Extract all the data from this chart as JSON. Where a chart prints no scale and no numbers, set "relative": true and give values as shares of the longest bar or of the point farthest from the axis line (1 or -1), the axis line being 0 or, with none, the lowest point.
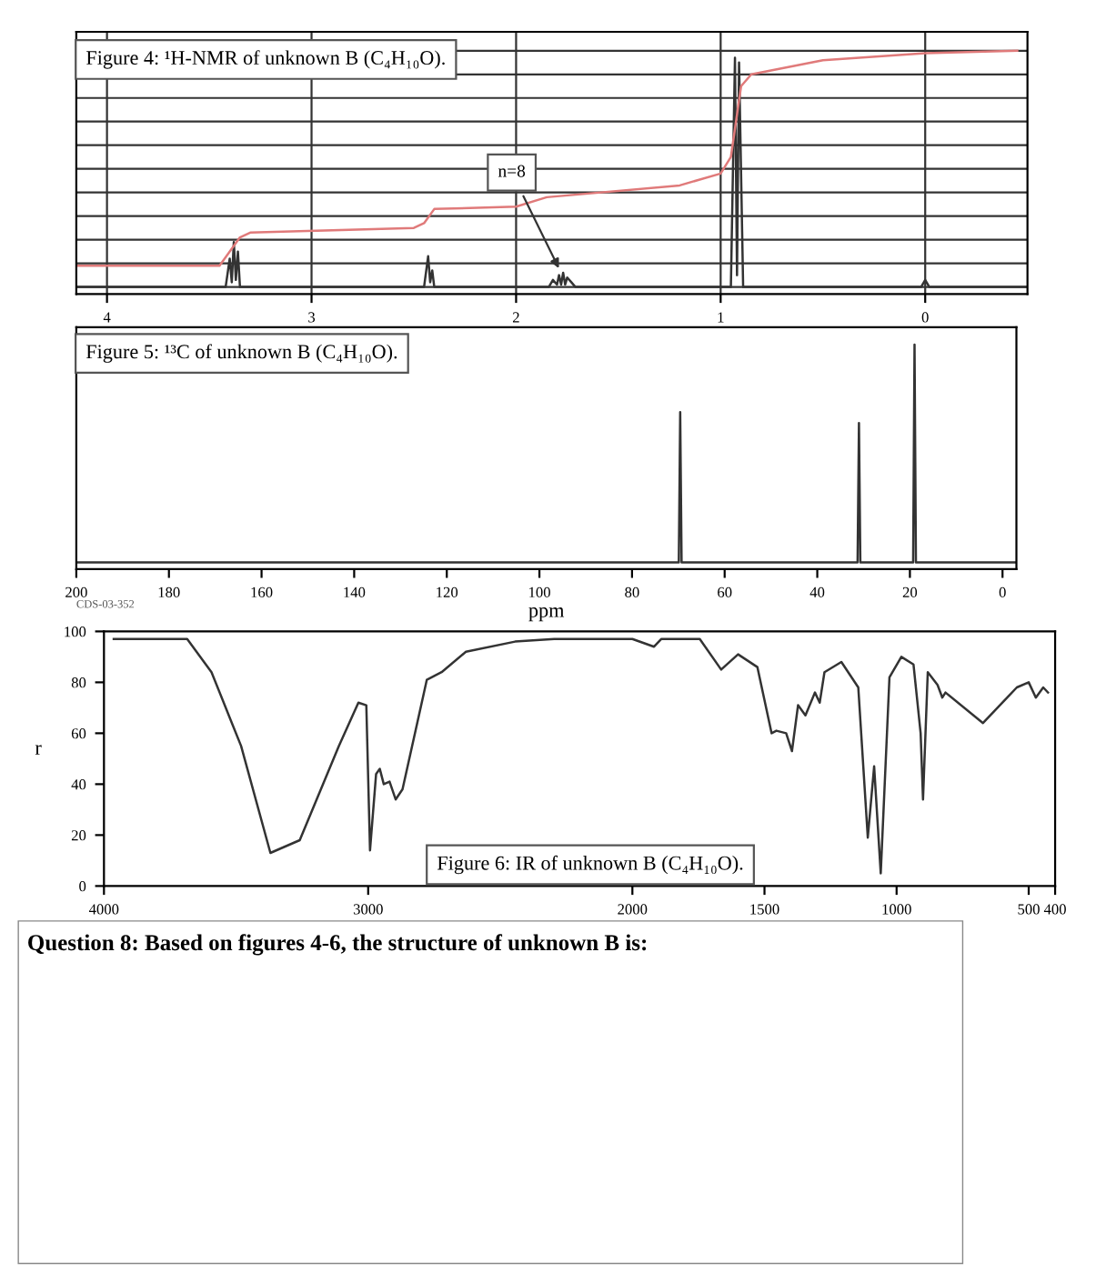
{
  "chart_data": [
    {
      "type": "line",
      "title": "Figure 4: ¹H-NMR of unknown B (C₄H₁₀O).",
      "relative": true,
      "grid": true,
      "xlim": [
        4.15,
        -0.5
      ],
      "xticks": [
        4,
        3,
        2,
        1,
        0
      ],
      "annotations": [
        {
          "text": "n=8",
          "x": 1.78,
          "y": 0.06
        }
      ],
      "series": [
        {
          "color": "#333333",
          "x": [
            4.15,
            3.42,
            3.4,
            3.39,
            3.38,
            3.37,
            3.36,
            3.35,
            2.45,
            2.43,
            2.42,
            2.41,
            2.4,
            1.84,
            1.82,
            1.8,
            1.79,
            1.78,
            1.77,
            1.76,
            1.75,
            1.73,
            1.71,
            0.95,
            0.93,
            0.92,
            0.91,
            0.89,
            0.02,
            0,
            -0.02,
            -0.5
          ],
          "values": [
            0,
            0,
            0.12,
            0.02,
            0.19,
            0.03,
            0.15,
            0,
            0,
            0.13,
            0.02,
            0.07,
            0,
            0,
            0.03,
            0.01,
            0.05,
            0.01,
            0.06,
            0.01,
            0.04,
            0.02,
            0,
            0,
            0.97,
            0.05,
            0.95,
            0,
            0,
            0.03,
            0,
            0
          ]
        },
        {
          "color": "#e07a7a",
          "x": [
            4.15,
            3.45,
            3.35,
            3.3,
            2.5,
            2.45,
            2.4,
            2.0,
            1.85,
            1.2,
            1.0,
            0.95,
            0.9,
            0.85,
            0.5,
            0,
            -0.45
          ],
          "values": [
            0.09,
            0.09,
            0.21,
            0.23,
            0.25,
            0.27,
            0.33,
            0.34,
            0.38,
            0.43,
            0.48,
            0.55,
            0.85,
            0.9,
            0.96,
            0.99,
            1.0
          ]
        }
      ]
    },
    {
      "type": "line",
      "title": "Figure 5: ¹³C of unknown B (C₄H₁₀O).",
      "relative": true,
      "xlabel": "ppm",
      "xlim": [
        200,
        -3
      ],
      "xticks": [
        200,
        180,
        160,
        140,
        120,
        100,
        80,
        60,
        40,
        20,
        0
      ],
      "annotations": [
        "CDS-03-352"
      ],
      "series": [
        {
          "color": "#333333",
          "x": [
            200,
            69.9,
            69.6,
            69.3,
            31.3,
            31.0,
            30.7,
            19.3,
            19.0,
            18.7,
            -3
          ],
          "values": [
            0,
            0,
            0.69,
            0,
            0,
            0.64,
            0,
            0,
            1.0,
            0,
            0
          ]
        }
      ]
    },
    {
      "type": "line",
      "title": "Figure 6: IR of unknown B (C₄H₁₀O).",
      "ylabel": "r",
      "xlim": [
        4000,
        400
      ],
      "ylim": [
        0,
        100
      ],
      "xticks": [
        4000,
        3000,
        2000,
        1500,
        1000,
        500,
        400
      ],
      "yticks": [
        0,
        20,
        40,
        60,
        80,
        100
      ],
      "series": [
        {
          "color": "#333333",
          "x": [
            3963,
            3685,
            3593,
            3481,
            3370,
            3259,
            3111,
            3037,
            3007,
            2993,
            2970,
            2956,
            2941,
            2919,
            2896,
            2870,
            2778,
            2722,
            2630,
            2444,
            2296,
            2000,
            1918,
            1891,
            1745,
            1664,
            1600,
            1527,
            1473,
            1455,
            1418,
            1396,
            1373,
            1345,
            1309,
            1291,
            1273,
            1209,
            1145,
            1109,
            1085,
            1060,
            1027,
            982,
            936,
            909,
            900,
            882,
            845,
            827,
            815,
            673,
            545,
            500,
            473,
            445,
            427
          ],
          "values": [
            97,
            97,
            84,
            55,
            13,
            18,
            55,
            72,
            71,
            14,
            44,
            46,
            40,
            41,
            34,
            38,
            81,
            84,
            92,
            96,
            97,
            97,
            94,
            97,
            97,
            85,
            91,
            86,
            60,
            61,
            60,
            53,
            71,
            67,
            76,
            72,
            84,
            88,
            78,
            19,
            47,
            5,
            82,
            90,
            87,
            60,
            34,
            84,
            79,
            74,
            76,
            64,
            78,
            80,
            74,
            78,
            76
          ]
        }
      ]
    },
    {
      "type": "other",
      "title": "Question 8: Based on figures 4-6, the structure of unknown B is:"
    }
  ]
}
